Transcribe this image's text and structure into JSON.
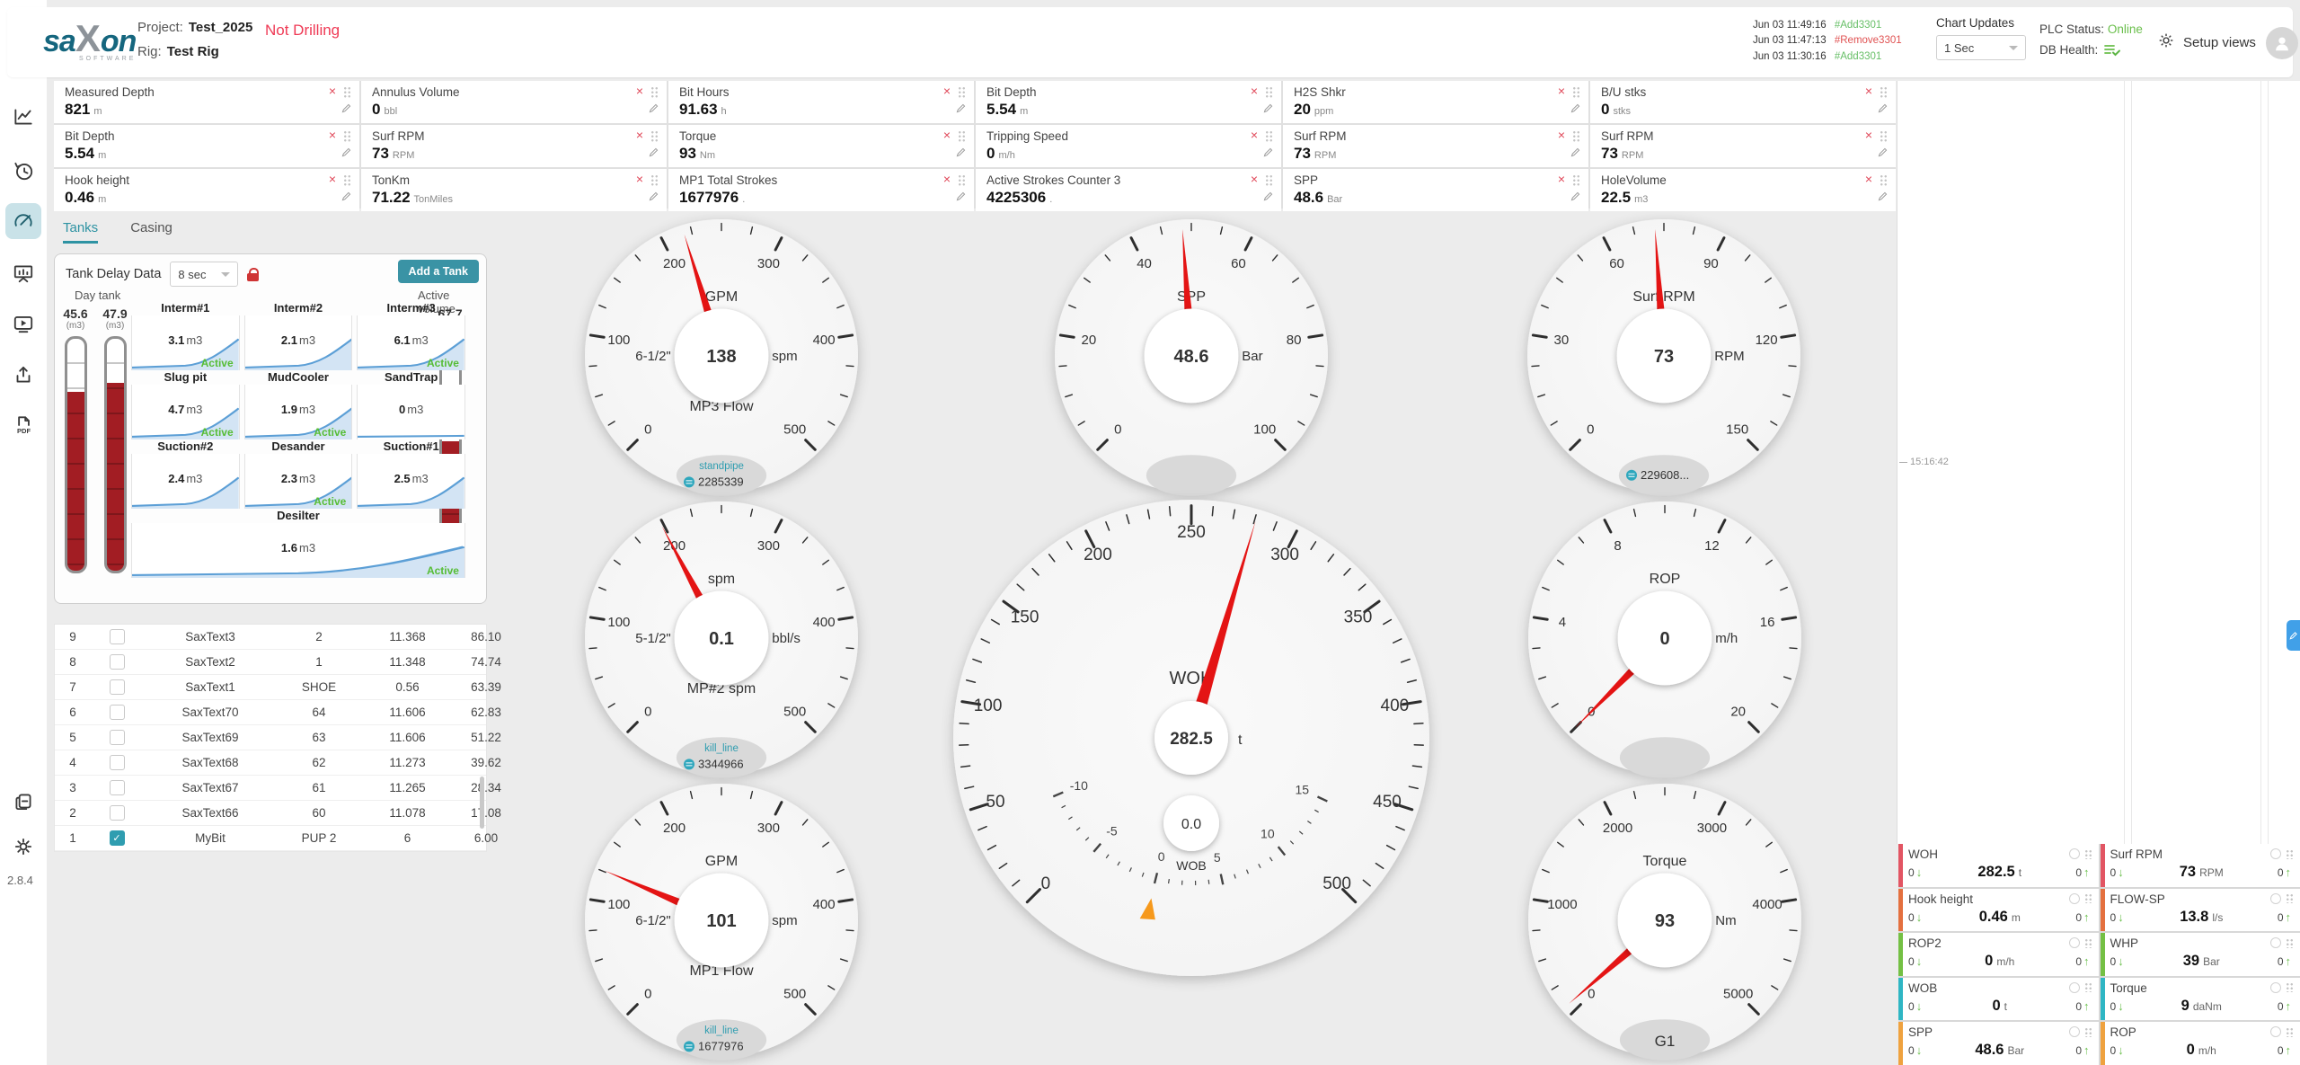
{
  "header": {
    "logo_text": "saon",
    "logo_x": "X",
    "logo_sa": "sa",
    "logo_on": "on",
    "logo_sub": "SOFTWARE",
    "project_label": "Project:",
    "project_value": "Test_2025",
    "rig_label": "Rig:",
    "rig_value": "Test Rig",
    "status": "Not Drilling",
    "updates": [
      {
        "time": "Jun 03 11:49:16",
        "tag": "#Add3301",
        "color": "#67bf67"
      },
      {
        "time": "Jun 03 11:47:13",
        "tag": "#Remove3301",
        "color": "#e05252"
      },
      {
        "time": "Jun 03 11:30:16",
        "tag": "#Add3301",
        "color": "#67bf67"
      }
    ],
    "chart_updates_label": "Chart Updates",
    "chart_updates_value": "1 Sec",
    "plc_label": "PLC Status:",
    "plc_value": "Online",
    "db_label": "DB Health:",
    "setup_views": "Setup views"
  },
  "sidebar": {
    "version": "2.8.4"
  },
  "tiles": [
    {
      "title": "Measured Depth",
      "value": "821",
      "unit": "m"
    },
    {
      "title": "Annulus Volume",
      "value": "0",
      "unit": "bbl"
    },
    {
      "title": "Bit Hours",
      "value": "91.63",
      "unit": "h"
    },
    {
      "title": "Bit Depth",
      "value": "5.54",
      "unit": "m"
    },
    {
      "title": "H2S Shkr",
      "value": "20",
      "unit": "ppm"
    },
    {
      "title": "B/U stks",
      "value": "0",
      "unit": "stks"
    },
    {
      "title": "Bit Depth",
      "value": "5.54",
      "unit": "m"
    },
    {
      "title": "Surf RPM",
      "value": "73",
      "unit": "RPM"
    },
    {
      "title": "Torque",
      "value": "93",
      "unit": "Nm"
    },
    {
      "title": "Tripping Speed",
      "value": "0",
      "unit": "m/h"
    },
    {
      "title": "Surf RPM",
      "value": "73",
      "unit": "RPM"
    },
    {
      "title": "Surf RPM",
      "value": "73",
      "unit": "RPM"
    },
    {
      "title": "Hook height",
      "value": "0.46",
      "unit": "m"
    },
    {
      "title": "TonKm",
      "value": "71.22",
      "unit": "TonMiles"
    },
    {
      "title": "MP1 Total Strokes",
      "value": "1677976",
      "unit": "."
    },
    {
      "title": "Active Strokes Counter 3",
      "value": "4225306",
      "unit": "."
    },
    {
      "title": "SPP",
      "value": "48.6",
      "unit": "Bar"
    },
    {
      "title": "HoleVolume",
      "value": "22.5",
      "unit": "m3"
    }
  ],
  "tanks": {
    "tabs": [
      {
        "label": "Tanks",
        "active": true
      },
      {
        "label": "Casing",
        "active": false
      }
    ],
    "delay_label": "Tank Delay Data",
    "delay_value": "8 sec",
    "add_button": "Add a Tank",
    "day_tank_label": "Day tank",
    "day_tanks": [
      {
        "value": "45.6",
        "unit": "(m3)",
        "level": "77%"
      },
      {
        "value": "47.9",
        "unit": "(m3)",
        "level": "81%"
      }
    ],
    "active_volume_label": "Active volume",
    "active_volume": {
      "value": "67.7",
      "unit": "(m3)",
      "level": "56%"
    },
    "cells": [
      {
        "name": "Interm#1",
        "value": "3.1",
        "unit": "m3",
        "active": "Active",
        "rise": true
      },
      {
        "name": "Interm#2",
        "value": "2.1",
        "unit": "m3",
        "active": "",
        "rise": true
      },
      {
        "name": "Interm#3",
        "value": "6.1",
        "unit": "m3",
        "active": "Active",
        "rise": true
      },
      {
        "name": "Slug pit",
        "value": "4.7",
        "unit": "m3",
        "active": "Active",
        "rise": true
      },
      {
        "name": "MudCooler",
        "value": "1.9",
        "unit": "m3",
        "active": "Active",
        "rise": true
      },
      {
        "name": "SandTrap",
        "value": "0",
        "unit": "m3",
        "active": "",
        "flat": true
      },
      {
        "name": "Suction#2",
        "value": "2.4",
        "unit": "m3",
        "active": "",
        "rise": true
      },
      {
        "name": "Desander",
        "value": "2.3",
        "unit": "m3",
        "active": "Active",
        "rise": true
      },
      {
        "name": "Suction#1",
        "value": "2.5",
        "unit": "m3",
        "active": "",
        "rise": true
      },
      {
        "name": "Desilter",
        "value": "1.6",
        "unit": "m3",
        "active": "Active",
        "rise": true,
        "wide": true
      }
    ]
  },
  "bits_table": {
    "rows": [
      {
        "num": "9",
        "checked": false,
        "name": "SaxText3",
        "c1": "2",
        "c2": "11.368",
        "c3": "86.10"
      },
      {
        "num": "8",
        "checked": false,
        "name": "SaxText2",
        "c1": "1",
        "c2": "11.348",
        "c3": "74.74"
      },
      {
        "num": "7",
        "checked": false,
        "name": "SaxText1",
        "c1": "SHOE",
        "c2": "0.56",
        "c3": "63.39"
      },
      {
        "num": "6",
        "checked": false,
        "name": "SaxText70",
        "c1": "64",
        "c2": "11.606",
        "c3": "62.83"
      },
      {
        "num": "5",
        "checked": false,
        "name": "SaxText69",
        "c1": "63",
        "c2": "11.606",
        "c3": "51.22"
      },
      {
        "num": "4",
        "checked": false,
        "name": "SaxText68",
        "c1": "62",
        "c2": "11.273",
        "c3": "39.62"
      },
      {
        "num": "3",
        "checked": false,
        "name": "SaxText67",
        "c1": "61",
        "c2": "11.265",
        "c3": "28.34"
      },
      {
        "num": "2",
        "checked": false,
        "name": "SaxText66",
        "c1": "60",
        "c2": "11.078",
        "c3": "17.08"
      },
      {
        "num": "1",
        "checked": true,
        "name": "MyBit",
        "c1": "PUP 2",
        "c2": "6",
        "c3": "6.00"
      }
    ]
  },
  "gauges": [
    {
      "id": "mp3-flow",
      "labels": [
        0,
        100,
        200,
        300,
        400,
        500
      ],
      "top": "GPM",
      "value": "138",
      "left": "6-1/2\"",
      "right": "spm",
      "bottom": "MP3 Flow",
      "needle_deg": -17,
      "badge": {
        "line1": "standpipe",
        "line2": "2285339",
        "icon": true
      }
    },
    {
      "id": "spp",
      "labels": [
        0,
        20,
        40,
        60,
        80,
        100
      ],
      "top": "SPP",
      "value": "48.6",
      "right": "Bar",
      "needle_deg": -4,
      "badge": {
        "empty": true
      }
    },
    {
      "id": "surf-rpm",
      "labels": [
        0,
        30,
        60,
        90,
        120,
        150
      ],
      "top": "Surf RPM",
      "value": "73",
      "right": "RPM",
      "needle_deg": -4,
      "badge": {
        "line2": "229608...",
        "icon": true
      }
    },
    {
      "id": "mp2-spm",
      "labels": [
        0,
        100,
        200,
        300,
        400,
        500
      ],
      "top": "spm",
      "value": "0.1",
      "left": "5-1/2\"",
      "right": "bbl/s",
      "bottom": "MP#2 spm",
      "needle_deg": -28,
      "badge": {
        "line1": "kill_line",
        "line2": "3344966",
        "icon": true
      }
    },
    {
      "id": "rop",
      "labels": [
        0,
        4,
        8,
        12,
        16,
        20
      ],
      "top": "ROP",
      "value": "0",
      "right": "m/h",
      "needle_deg": -135,
      "badge": {
        "empty": true
      }
    },
    {
      "id": "mp1-flow",
      "labels": [
        0,
        100,
        200,
        300,
        400,
        500
      ],
      "top": "GPM",
      "value": "101",
      "left": "6-1/2\"",
      "right": "spm",
      "bottom": "MP1 Flow",
      "needle_deg": -67,
      "badge": {
        "line1": "kill_line",
        "line2": "1677976",
        "icon": true
      }
    },
    {
      "id": "torque",
      "labels": [
        0,
        1000,
        2000,
        3000,
        4000,
        5000
      ],
      "top": "Torque",
      "value": "93",
      "right": "Nm",
      "needle_deg": -131,
      "badge": {
        "big": "G1"
      }
    }
  ],
  "big_gauge": {
    "id": "woh-wob",
    "outer_labels": [
      0,
      50,
      100,
      150,
      200,
      250,
      300,
      350,
      400,
      450,
      500
    ],
    "inner_labels": [
      -10,
      -5,
      0,
      5,
      10,
      15
    ],
    "top_label": "WOH",
    "value": "282.5",
    "unit": "t",
    "sub_value": "0.0",
    "sub_label": "WOB",
    "needle_deg": 16.5,
    "marker_deg": 194
  },
  "chart_panel": {
    "time_label": "15:16:42"
  },
  "metric_cards": [
    {
      "label": "WOH",
      "value": "282.5",
      "unit": "t",
      "min": "0",
      "max": "0",
      "color": "#e25563"
    },
    {
      "label": "Surf RPM",
      "value": "73",
      "unit": "RPM",
      "min": "0",
      "max": "0",
      "color": "#e25563"
    },
    {
      "label": "Hook height",
      "value": "0.46",
      "unit": "m",
      "min": "0",
      "max": "0",
      "color": "#e4703f"
    },
    {
      "label": "FLOW-SP",
      "value": "13.8",
      "unit": "l/s",
      "min": "0",
      "max": "0",
      "color": "#e4703f"
    },
    {
      "label": "ROP2",
      "value": "0",
      "unit": "m/h",
      "min": "0",
      "max": "0",
      "color": "#74c044"
    },
    {
      "label": "WHP",
      "value": "39",
      "unit": "Bar",
      "min": "0",
      "max": "0",
      "color": "#74c044"
    },
    {
      "label": "WOB",
      "value": "0",
      "unit": "t",
      "min": "0",
      "max": "0",
      "color": "#2fb6c4"
    },
    {
      "label": "Torque",
      "value": "9",
      "unit": "daNm",
      "min": "0",
      "max": "0",
      "color": "#2fb6c4"
    },
    {
      "label": "SPP",
      "value": "48.6",
      "unit": "Bar",
      "min": "0",
      "max": "0",
      "color": "#efa23f"
    },
    {
      "label": "ROP",
      "value": "0",
      "unit": "m/h",
      "min": "0",
      "max": "0",
      "color": "#efa23f"
    }
  ]
}
